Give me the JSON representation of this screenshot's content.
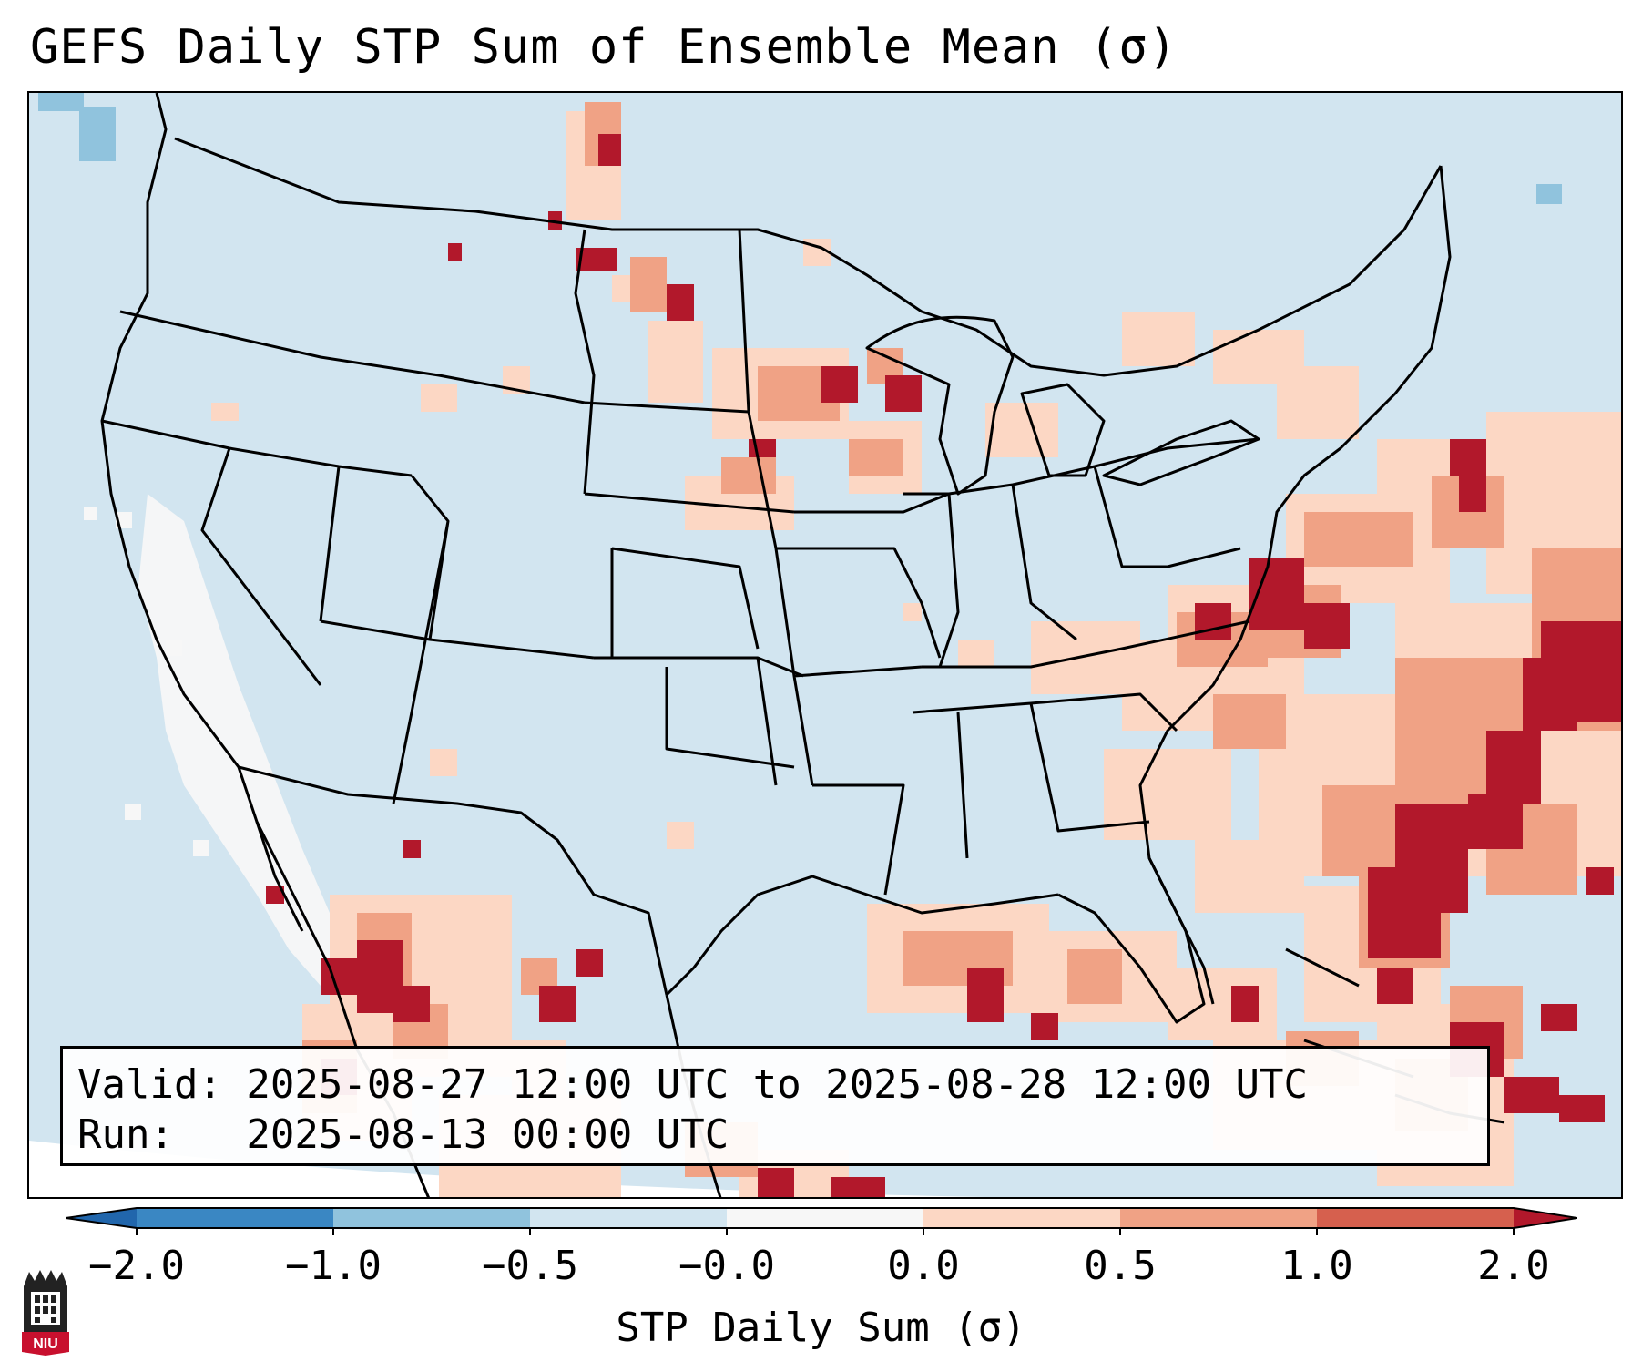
{
  "title": "GEFS Daily STP Sum of Ensemble Mean (σ)",
  "valid_line": "Valid: 2025-08-27 12:00 UTC to 2025-08-28 12:00 UTC",
  "run_line": "Run:   2025-08-13 00:00 UTC",
  "colorbar": {
    "label": "STP Daily Sum (σ)",
    "ticks": [
      "−2.0",
      "−1.0",
      "−0.5",
      "−0.0",
      "0.0",
      "0.5",
      "1.0",
      "2.0"
    ],
    "bin_colors": [
      "#3a87c3",
      "#90c3dd",
      "#d2e5f0",
      "#f7f7f7",
      "#fcd7c4",
      "#f0a285",
      "#d6604e",
      "#b2182b"
    ],
    "extend_low_color": "#2166ac",
    "extend_high_color": "#b2182b"
  },
  "map": {
    "background_color": "#d2e5f0",
    "border_color": "#000000",
    "region": "CONUS"
  },
  "logo": {
    "text": "NIU",
    "color": "#c8102e"
  }
}
